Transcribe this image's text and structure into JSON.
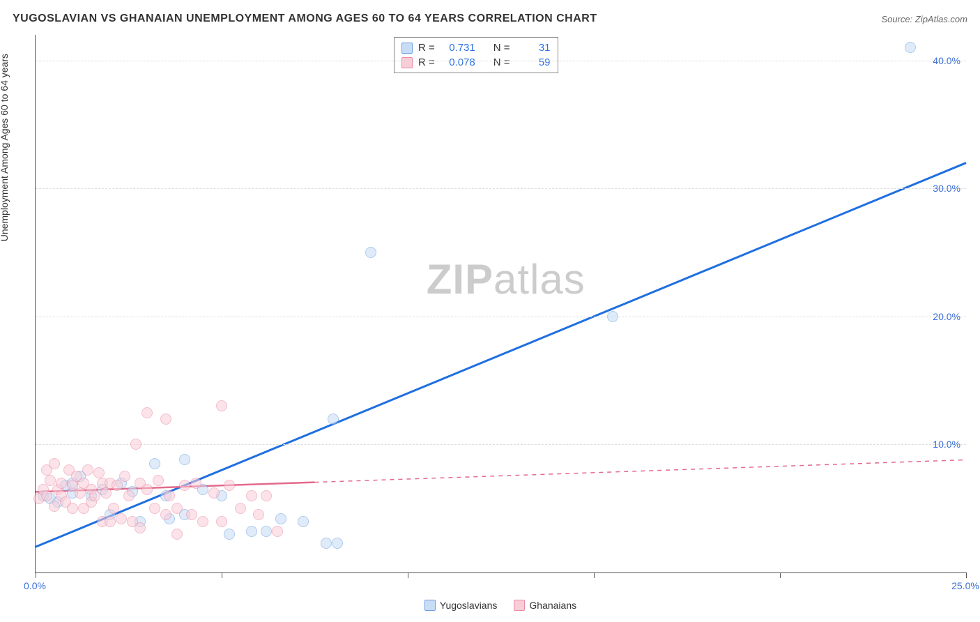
{
  "title": "YUGOSLAVIAN VS GHANAIAN UNEMPLOYMENT AMONG AGES 60 TO 64 YEARS CORRELATION CHART",
  "source_label": "Source:",
  "source_site": "ZipAtlas.com",
  "ylabel": "Unemployment Among Ages 60 to 64 years",
  "watermark": {
    "part1": "ZIP",
    "part2": "atlas"
  },
  "chart": {
    "type": "scatter",
    "xlim": [
      0,
      25
    ],
    "ylim": [
      0,
      42
    ],
    "xticks": [
      0,
      5,
      10,
      15,
      20,
      25
    ],
    "yticks": [
      10,
      20,
      30,
      40
    ],
    "xlabel_format": "{v}.0%",
    "ylabel_format": "{v}.0%",
    "background_color": "#ffffff",
    "grid_color": "#dddddd",
    "axis_color": "#555555",
    "marker_radius": 8,
    "marker_stroke_width": 1.5,
    "marker_opacity": 0.55,
    "series": [
      {
        "key": "yugoslavians",
        "label": "Yugoslavians",
        "fill": "#c8dcf5",
        "stroke": "#6c9fe2",
        "line_color": "#1f6fe0",
        "line_width": 3,
        "line_dash": "none",
        "R_label": "R  =",
        "R": "0.731",
        "N_label": "N  =",
        "N": "31",
        "trend": {
          "x1": 0,
          "y1": 2.0,
          "x2": 25,
          "y2": 32.0
        },
        "points": [
          {
            "x": 0.2,
            "y": 6.0
          },
          {
            "x": 0.4,
            "y": 5.8
          },
          {
            "x": 0.6,
            "y": 5.5
          },
          {
            "x": 0.8,
            "y": 6.8
          },
          {
            "x": 1.0,
            "y": 6.2
          },
          {
            "x": 1.2,
            "y": 7.5
          },
          {
            "x": 1.5,
            "y": 6.0
          },
          {
            "x": 1.8,
            "y": 6.5
          },
          {
            "x": 2.0,
            "y": 4.5
          },
          {
            "x": 2.3,
            "y": 7.0
          },
          {
            "x": 2.6,
            "y": 6.3
          },
          {
            "x": 2.8,
            "y": 4.0
          },
          {
            "x": 3.2,
            "y": 8.5
          },
          {
            "x": 3.5,
            "y": 6.0
          },
          {
            "x": 3.6,
            "y": 4.2
          },
          {
            "x": 4.0,
            "y": 8.8
          },
          {
            "x": 4.0,
            "y": 4.5
          },
          {
            "x": 4.5,
            "y": 6.5
          },
          {
            "x": 5.0,
            "y": 6.0
          },
          {
            "x": 5.2,
            "y": 3.0
          },
          {
            "x": 5.8,
            "y": 3.2
          },
          {
            "x": 6.2,
            "y": 3.2
          },
          {
            "x": 6.6,
            "y": 4.2
          },
          {
            "x": 7.2,
            "y": 4.0
          },
          {
            "x": 7.8,
            "y": 2.3
          },
          {
            "x": 8.0,
            "y": 12.0
          },
          {
            "x": 8.1,
            "y": 2.3
          },
          {
            "x": 9.0,
            "y": 25.0
          },
          {
            "x": 15.5,
            "y": 20.0
          },
          {
            "x": 23.5,
            "y": 41.0
          },
          {
            "x": 1.0,
            "y": 7.0
          }
        ]
      },
      {
        "key": "ghanaians",
        "label": "Ghanaians",
        "fill": "#f8cdd8",
        "stroke": "#e98aa5",
        "line_color": "#e36a8b",
        "line_width": 2.5,
        "line_dash": "dashed_after",
        "dash_split_x": 7.5,
        "R_label": "R  =",
        "R": "0.078",
        "N_label": "N  =",
        "N": "59",
        "trend": {
          "x1": 0,
          "y1": 6.3,
          "x2": 25,
          "y2": 8.8
        },
        "points": [
          {
            "x": 0.1,
            "y": 5.8
          },
          {
            "x": 0.2,
            "y": 6.5
          },
          {
            "x": 0.3,
            "y": 8.0
          },
          {
            "x": 0.3,
            "y": 6.0
          },
          {
            "x": 0.4,
            "y": 7.2
          },
          {
            "x": 0.5,
            "y": 5.2
          },
          {
            "x": 0.5,
            "y": 8.5
          },
          {
            "x": 0.6,
            "y": 6.5
          },
          {
            "x": 0.7,
            "y": 6.0
          },
          {
            "x": 0.7,
            "y": 7.0
          },
          {
            "x": 0.8,
            "y": 5.5
          },
          {
            "x": 0.9,
            "y": 8.0
          },
          {
            "x": 1.0,
            "y": 6.8
          },
          {
            "x": 1.0,
            "y": 5.0
          },
          {
            "x": 1.1,
            "y": 7.5
          },
          {
            "x": 1.2,
            "y": 6.2
          },
          {
            "x": 1.3,
            "y": 7.0
          },
          {
            "x": 1.3,
            "y": 5.0
          },
          {
            "x": 1.4,
            "y": 8.0
          },
          {
            "x": 1.5,
            "y": 6.5
          },
          {
            "x": 1.5,
            "y": 5.5
          },
          {
            "x": 1.6,
            "y": 6.0
          },
          {
            "x": 1.7,
            "y": 7.8
          },
          {
            "x": 1.8,
            "y": 4.0
          },
          {
            "x": 1.8,
            "y": 7.0
          },
          {
            "x": 1.9,
            "y": 6.2
          },
          {
            "x": 2.0,
            "y": 4.0
          },
          {
            "x": 2.0,
            "y": 7.0
          },
          {
            "x": 2.1,
            "y": 5.0
          },
          {
            "x": 2.2,
            "y": 6.8
          },
          {
            "x": 2.3,
            "y": 4.2
          },
          {
            "x": 2.4,
            "y": 7.5
          },
          {
            "x": 2.5,
            "y": 6.0
          },
          {
            "x": 2.6,
            "y": 4.0
          },
          {
            "x": 2.7,
            "y": 10.0
          },
          {
            "x": 2.8,
            "y": 7.0
          },
          {
            "x": 2.8,
            "y": 3.5
          },
          {
            "x": 3.0,
            "y": 6.5
          },
          {
            "x": 3.0,
            "y": 12.5
          },
          {
            "x": 3.2,
            "y": 5.0
          },
          {
            "x": 3.3,
            "y": 7.2
          },
          {
            "x": 3.5,
            "y": 4.5
          },
          {
            "x": 3.5,
            "y": 12.0
          },
          {
            "x": 3.6,
            "y": 6.0
          },
          {
            "x": 3.8,
            "y": 5.0
          },
          {
            "x": 3.8,
            "y": 3.0
          },
          {
            "x": 4.0,
            "y": 6.8
          },
          {
            "x": 4.2,
            "y": 4.5
          },
          {
            "x": 4.3,
            "y": 7.0
          },
          {
            "x": 4.5,
            "y": 4.0
          },
          {
            "x": 4.8,
            "y": 6.2
          },
          {
            "x": 5.0,
            "y": 13.0
          },
          {
            "x": 5.0,
            "y": 4.0
          },
          {
            "x": 5.2,
            "y": 6.8
          },
          {
            "x": 5.5,
            "y": 5.0
          },
          {
            "x": 5.8,
            "y": 6.0
          },
          {
            "x": 6.0,
            "y": 4.5
          },
          {
            "x": 6.2,
            "y": 6.0
          },
          {
            "x": 6.5,
            "y": 3.2
          }
        ]
      }
    ]
  },
  "legend_bottom": [
    {
      "label": "Yugoslavians",
      "fill": "#c8dcf5",
      "stroke": "#6c9fe2"
    },
    {
      "label": "Ghanaians",
      "fill": "#f8cdd8",
      "stroke": "#e98aa5"
    }
  ]
}
